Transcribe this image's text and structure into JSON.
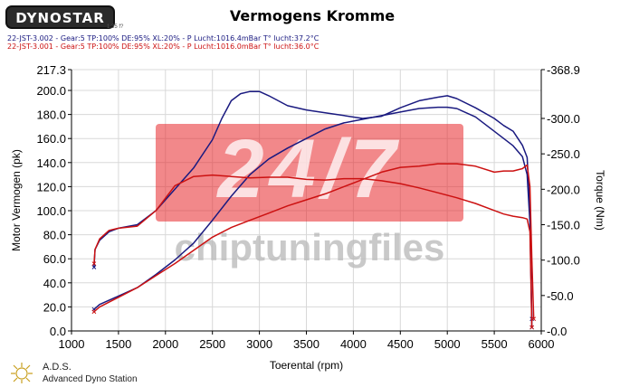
{
  "brand": {
    "logo_text": "DYNOSTAR",
    "logo_sub": "1.35 f?"
  },
  "title": "Vermogens Kromme",
  "runs": [
    {
      "label": "22-JST-3.002 - Gear:5 TP:100% DE:95% XL:20%  - P Lucht:1016.4mBar T° lucht:37.2°C",
      "color": "#1a1a80"
    },
    {
      "label": "22-JST-3.001 - Gear:5 TP:100% DE:95% XL:20%  - P Lucht:1016.0mBar T° lucht:36.0°C",
      "color": "#cc1111"
    }
  ],
  "watermark": {
    "big": "24/7",
    "small": "chiptuningfiles",
    "box_color": "#e8262a",
    "text_color": "#bbbbbb"
  },
  "footer": {
    "name": "A.D.S.",
    "subtitle": "Advanced Dyno Station"
  },
  "chart_data": {
    "type": "line",
    "xlabel": "Toerental (rpm)",
    "ylabel_left": "Motor Vermogen (pk)",
    "ylabel_right": "Torque (Nm)",
    "xlim": [
      1000,
      6000
    ],
    "ylim_left": [
      0,
      217.3
    ],
    "ylim_right": [
      0,
      368.9
    ],
    "x_ticks": [
      "1000",
      "1500",
      "2000",
      "2500",
      "3000",
      "3500",
      "4000",
      "4500",
      "5000",
      "5500",
      "6000"
    ],
    "y_ticks_left": [
      "0.0",
      "20.0",
      "40.0",
      "60.0",
      "80.0",
      "100.0",
      "120.0",
      "140.0",
      "160.0",
      "180.0",
      "200.0",
      "217.3"
    ],
    "y_ticks_right": [
      "0.0",
      "50.0",
      "100.0",
      "150.0",
      "200.0",
      "250.0",
      "300.0",
      "368.9"
    ],
    "grid": true,
    "series": [
      {
        "name": "22-JST-3.002",
        "kind": "power",
        "axis": "left",
        "color": "#1a1a80",
        "x": [
          1240,
          1300,
          1500,
          1700,
          1900,
          2100,
          2300,
          2500,
          2700,
          2900,
          3100,
          3300,
          3500,
          3700,
          3900,
          4100,
          4300,
          4500,
          4700,
          4900,
          5000,
          5100,
          5300,
          5500,
          5600,
          5700,
          5800,
          5850,
          5880,
          5900
        ],
        "y": [
          18,
          22,
          29,
          36,
          47,
          59,
          73,
          92,
          112,
          130,
          143,
          152,
          160,
          168,
          173,
          176,
          179,
          182,
          185,
          186,
          186,
          185,
          178,
          166,
          160,
          154,
          145,
          130,
          90,
          10
        ]
      },
      {
        "name": "22-JST-3.002",
        "kind": "torque",
        "axis": "right",
        "color": "#1a1a80",
        "x": [
          1240,
          1250,
          1300,
          1400,
          1500,
          1700,
          1900,
          2100,
          2300,
          2500,
          2600,
          2700,
          2800,
          2900,
          3000,
          3100,
          3300,
          3500,
          3700,
          3900,
          4100,
          4300,
          4500,
          4700,
          4900,
          5000,
          5100,
          5300,
          5500,
          5600,
          5700,
          5800,
          5850,
          5880,
          5900
        ],
        "y": [
          90,
          115,
          128,
          140,
          145,
          150,
          170,
          200,
          230,
          270,
          300,
          325,
          335,
          338,
          338,
          332,
          318,
          312,
          308,
          304,
          300,
          303,
          315,
          325,
          330,
          332,
          328,
          315,
          300,
          290,
          282,
          262,
          245,
          170,
          5
        ]
      },
      {
        "name": "22-JST-3.001",
        "kind": "power",
        "axis": "left",
        "color": "#cc1111",
        "x": [
          1240,
          1300,
          1500,
          1700,
          1900,
          2100,
          2300,
          2500,
          2700,
          2900,
          3100,
          3300,
          3500,
          3700,
          3900,
          4100,
          4300,
          4500,
          4700,
          4900,
          5100,
          5300,
          5500,
          5600,
          5700,
          5800,
          5850,
          5880,
          5900,
          5920
        ],
        "y": [
          16,
          20,
          28,
          36,
          46,
          56,
          67,
          78,
          86,
          92,
          98,
          104,
          109,
          114,
          120,
          126,
          132,
          136,
          137,
          139,
          139,
          137,
          132,
          133,
          133,
          135,
          138,
          120,
          60,
          10
        ]
      },
      {
        "name": "22-JST-3.001",
        "kind": "torque",
        "axis": "right",
        "color": "#cc1111",
        "x": [
          1240,
          1250,
          1300,
          1400,
          1500,
          1700,
          1900,
          2100,
          2300,
          2500,
          2700,
          2900,
          3100,
          3300,
          3500,
          3700,
          3900,
          4100,
          4300,
          4500,
          4700,
          4900,
          5100,
          5300,
          5500,
          5600,
          5700,
          5800,
          5850,
          5880,
          5900
        ],
        "y": [
          95,
          115,
          130,
          142,
          145,
          148,
          170,
          205,
          218,
          220,
          218,
          216,
          217,
          217,
          214,
          213,
          215,
          215,
          212,
          208,
          202,
          195,
          188,
          180,
          170,
          165,
          162,
          160,
          158,
          140,
          5
        ]
      }
    ]
  }
}
